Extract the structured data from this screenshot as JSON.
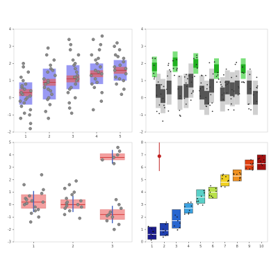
{
  "chart_data": [
    {
      "type": "box",
      "panel": "top-left",
      "ylim": [
        -2,
        4
      ],
      "yticks": [
        "-2",
        "-1",
        "0",
        "1",
        "2",
        "3",
        "4"
      ],
      "xtick_labels": [
        "1",
        "2",
        "3",
        "4",
        "5"
      ],
      "box_color": "#8080f0",
      "mean_color": "#e06060",
      "groups": [
        {
          "x": 1,
          "q1": -0.4,
          "median": 0.3,
          "q3": 0.9,
          "mean_lo": 0.1,
          "mean_hi": 0.5,
          "points": [
            -1.8,
            -1.5,
            -1.2,
            -0.9,
            -0.7,
            -0.5,
            -0.3,
            -0.1,
            0.0,
            0.2,
            0.3,
            0.4,
            0.5,
            0.6,
            0.8,
            1.0,
            1.2,
            1.5,
            1.8,
            2.0,
            -0.2,
            0.1,
            0.7,
            -1.0
          ]
        },
        {
          "x": 2,
          "q1": -0.1,
          "median": 0.9,
          "q3": 1.7,
          "mean_lo": 0.7,
          "mean_hi": 1.1,
          "points": [
            -1.2,
            -0.8,
            -0.4,
            -0.1,
            0.2,
            0.4,
            0.6,
            0.8,
            0.9,
            1.1,
            1.3,
            1.5,
            1.7,
            1.9,
            2.2,
            2.5,
            2.9,
            0.0,
            1.0,
            1.6,
            0.5
          ]
        },
        {
          "x": 3,
          "q1": 0.5,
          "median": 1.1,
          "q3": 1.9,
          "mean_lo": 0.9,
          "mean_hi": 1.3,
          "points": [
            -0.9,
            -0.6,
            -0.3,
            0.0,
            0.3,
            0.5,
            0.8,
            1.0,
            1.1,
            1.3,
            1.5,
            1.7,
            1.9,
            2.2,
            2.5,
            2.8,
            3.1,
            3.4,
            0.6,
            1.2,
            2.0
          ]
        },
        {
          "x": 4,
          "q1": 0.8,
          "median": 1.4,
          "q3": 2.0,
          "mean_lo": 1.2,
          "mean_hi": 1.6,
          "points": [
            -0.7,
            -0.2,
            0.3,
            0.6,
            0.9,
            1.1,
            1.3,
            1.4,
            1.6,
            1.8,
            2.0,
            2.2,
            2.5,
            2.8,
            3.1,
            3.4,
            3.6,
            0.8,
            1.5,
            2.3
          ]
        },
        {
          "x": 5,
          "q1": 1.0,
          "median": 1.6,
          "q3": 2.2,
          "mean_lo": 1.4,
          "mean_hi": 1.8,
          "points": [
            0.2,
            0.5,
            0.8,
            1.0,
            1.2,
            1.4,
            1.6,
            1.7,
            1.9,
            2.1,
            2.3,
            2.5,
            2.8,
            3.0,
            3.2,
            1.1,
            1.8,
            2.4
          ]
        }
      ]
    },
    {
      "type": "box",
      "panel": "top-right",
      "ylim": [
        -2,
        4
      ],
      "yticks": [
        "-2",
        "-1",
        "0",
        "1",
        "2",
        "3",
        "4"
      ],
      "xtick_labels": [],
      "green_groups": [
        {
          "xfrac": 0.07,
          "y": 1.8
        },
        {
          "xfrac": 0.24,
          "y": 2.1
        },
        {
          "xfrac": 0.41,
          "y": 2.0
        },
        {
          "xfrac": 0.58,
          "y": 1.7
        },
        {
          "xfrac": 0.8,
          "y": 1.7
        }
      ],
      "gray_groups": [
        {
          "xfrac": 0.1,
          "y": 0.4
        },
        {
          "xfrac": 0.14,
          "y": 0.1
        },
        {
          "xfrac": 0.19,
          "y": 0.6
        },
        {
          "xfrac": 0.28,
          "y": 0.3
        },
        {
          "xfrac": 0.33,
          "y": 0.4
        },
        {
          "xfrac": 0.37,
          "y": 1.0
        },
        {
          "xfrac": 0.46,
          "y": 0.3
        },
        {
          "xfrac": 0.5,
          "y": 0.0
        },
        {
          "xfrac": 0.54,
          "y": 0.7
        },
        {
          "xfrac": 0.63,
          "y": 0.2
        },
        {
          "xfrac": 0.67,
          "y": 0.6
        },
        {
          "xfrac": 0.71,
          "y": 0.5
        },
        {
          "xfrac": 0.75,
          "y": 0.6
        },
        {
          "xfrac": 0.85,
          "y": 0.6
        },
        {
          "xfrac": 0.9,
          "y": 0.0
        }
      ]
    },
    {
      "type": "box",
      "panel": "bottom-left",
      "ylim": [
        -3,
        5
      ],
      "yticks": [
        "-3",
        "-2",
        "-1",
        "0",
        "1",
        "2",
        "3",
        "4",
        "5"
      ],
      "xtick_labels": [
        "1",
        "2",
        "3"
      ],
      "box_color": "#f4a0a0",
      "median_color": "#d03030",
      "groups": [
        {
          "x": 1,
          "q1": -0.3,
          "median": 0.2,
          "q3": 0.8,
          "points": [
            -1.4,
            -1.0,
            -0.7,
            -0.4,
            -0.2,
            0.0,
            0.1,
            0.2,
            0.3,
            0.5,
            0.7,
            0.9,
            1.2,
            1.6,
            2.4,
            0.4,
            -0.5
          ]
        },
        {
          "x": 2,
          "q1": -0.3,
          "median": 0.0,
          "q3": 0.4,
          "points": [
            -1.1,
            -0.8,
            -0.5,
            -0.3,
            -0.1,
            0.0,
            0.1,
            0.3,
            0.5,
            0.8,
            1.0,
            1.3,
            1.6,
            1.9,
            -0.2,
            0.2
          ]
        },
        {
          "x": 3,
          "q1": 3.6,
          "median": 3.8,
          "q3": 4.1,
          "points": [
            3.3,
            3.6,
            3.8,
            4.0,
            4.3,
            4.6
          ]
        },
        {
          "x": 3,
          "q1": -1.2,
          "median": -0.8,
          "q3": -0.4,
          "points": [
            -2.0,
            -1.6,
            -1.3,
            -1.0,
            -0.8,
            -0.6,
            -0.3,
            0.0,
            0.4,
            -0.9
          ]
        }
      ]
    },
    {
      "type": "box",
      "panel": "bottom-right",
      "ylim": [
        0,
        8
      ],
      "yticks": [
        "0",
        "1",
        "2",
        "3",
        "4",
        "5",
        "6",
        "7",
        "8"
      ],
      "xtick_labels": [
        "1",
        "2",
        "3",
        "4",
        "5",
        "6",
        "7",
        "8",
        "9",
        "10"
      ],
      "outlier": {
        "x": 1.6,
        "y": 6.9,
        "err_lo": 5.7,
        "err_hi": 8.0,
        "color": "#c02020"
      },
      "groups": [
        {
          "x": 1,
          "q1": 0.2,
          "median": 0.6,
          "q3": 1.2,
          "color": "#1a1a8c"
        },
        {
          "x": 2,
          "q1": 0.5,
          "median": 0.9,
          "q3": 1.5,
          "color": "#1f3fb0"
        },
        {
          "x": 3,
          "q1": 1.1,
          "median": 1.7,
          "q3": 2.6,
          "color": "#2866d0"
        },
        {
          "x": 4,
          "q1": 2.3,
          "median": 2.7,
          "q3": 3.1,
          "color": "#3aa0e0"
        },
        {
          "x": 5,
          "q1": 3.1,
          "median": 3.6,
          "q3": 4.2,
          "color": "#5ad0c8"
        },
        {
          "x": 6,
          "q1": 3.5,
          "median": 4.0,
          "q3": 4.4,
          "color": "#b8e04a"
        },
        {
          "x": 7,
          "q1": 4.5,
          "median": 4.8,
          "q3": 5.4,
          "color": "#f0d020"
        },
        {
          "x": 8,
          "q1": 4.9,
          "median": 5.3,
          "q3": 5.8,
          "color": "#f09020"
        },
        {
          "x": 9,
          "q1": 5.8,
          "median": 6.2,
          "q3": 6.6,
          "color": "#e04010"
        },
        {
          "x": 10,
          "q1": 5.8,
          "median": 6.3,
          "q3": 7.0,
          "color": "#a01010"
        }
      ]
    }
  ]
}
